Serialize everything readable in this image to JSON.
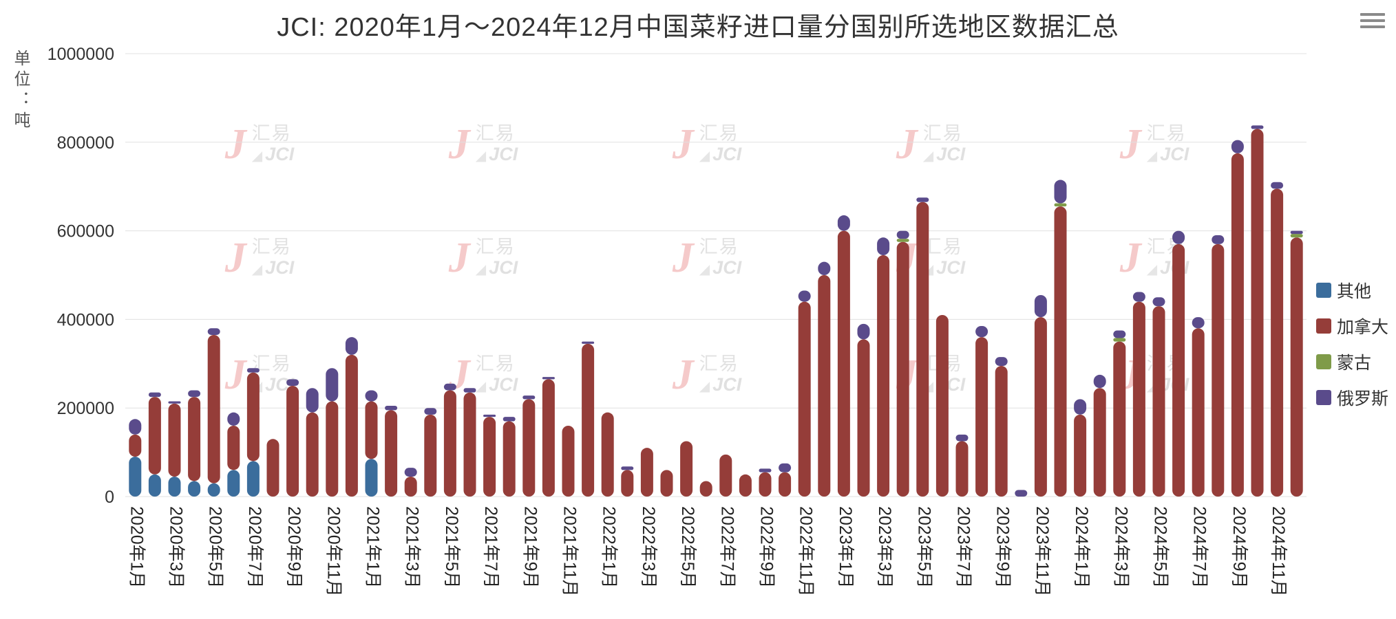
{
  "title": "JCI: 2020年1月～2024年12月中国菜籽进口量分国别所选地区数据汇总",
  "y_axis_label": "单位：吨",
  "menu_icon": "hamburger-menu",
  "watermark": {
    "logo": "J",
    "text_cn": "汇易",
    "text_en": "JCI",
    "accent": "◢"
  },
  "legend": [
    {
      "key": "other",
      "label": "其他",
      "color": "#3b6d9c"
    },
    {
      "key": "canada",
      "label": "加拿大",
      "color": "#953d39"
    },
    {
      "key": "mongolia",
      "label": "蒙古",
      "color": "#7f9b49"
    },
    {
      "key": "russia",
      "label": "俄罗斯",
      "color": "#5a4b8b"
    }
  ],
  "chart_data": {
    "type": "bar",
    "stacked": true,
    "title": "JCI: 2020年1月～2024年12月中国菜籽进口量分国别所选地区数据汇总",
    "ylabel": "单位：吨",
    "xlabel": "",
    "ylim": [
      0,
      1000000
    ],
    "yticks": [
      0,
      200000,
      400000,
      600000,
      800000,
      1000000
    ],
    "grid": true,
    "legend_position": "right",
    "x_label_interval": 2,
    "x_label_rotate": 90,
    "categories": [
      "2020年1月",
      "2020年2月",
      "2020年3月",
      "2020年4月",
      "2020年5月",
      "2020年6月",
      "2020年7月",
      "2020年8月",
      "2020年9月",
      "2020年10月",
      "2020年11月",
      "2020年12月",
      "2021年1月",
      "2021年2月",
      "2021年3月",
      "2021年4月",
      "2021年5月",
      "2021年6月",
      "2021年7月",
      "2021年8月",
      "2021年9月",
      "2021年10月",
      "2021年11月",
      "2021年12月",
      "2022年1月",
      "2022年2月",
      "2022年3月",
      "2022年4月",
      "2022年5月",
      "2022年6月",
      "2022年7月",
      "2022年8月",
      "2022年9月",
      "2022年10月",
      "2022年11月",
      "2022年12月",
      "2023年1月",
      "2023年2月",
      "2023年3月",
      "2023年4月",
      "2023年5月",
      "2023年6月",
      "2023年7月",
      "2023年8月",
      "2023年9月",
      "2023年10月",
      "2023年11月",
      "2023年12月",
      "2024年1月",
      "2024年2月",
      "2024年3月",
      "2024年4月",
      "2024年5月",
      "2024年6月",
      "2024年7月",
      "2024年8月",
      "2024年9月",
      "2024年10月",
      "2024年11月",
      "2024年12月"
    ],
    "series": [
      {
        "key": "other",
        "name": "其他",
        "color": "#3b6d9c",
        "values": [
          90000,
          50000,
          45000,
          35000,
          30000,
          60000,
          80000,
          0,
          0,
          0,
          0,
          0,
          85000,
          0,
          0,
          0,
          0,
          0,
          0,
          0,
          0,
          0,
          0,
          0,
          0,
          0,
          0,
          0,
          0,
          0,
          0,
          0,
          0,
          0,
          0,
          0,
          0,
          0,
          0,
          0,
          0,
          0,
          0,
          0,
          0,
          0,
          0,
          0,
          0,
          0,
          0,
          0,
          0,
          0,
          0,
          0,
          0,
          0,
          0,
          0
        ]
      },
      {
        "key": "canada",
        "name": "加拿大",
        "color": "#953d39",
        "values": [
          50000,
          175000,
          165000,
          190000,
          335000,
          100000,
          200000,
          130000,
          250000,
          190000,
          215000,
          320000,
          130000,
          195000,
          45000,
          185000,
          240000,
          235000,
          180000,
          170000,
          220000,
          265000,
          160000,
          345000,
          190000,
          60000,
          110000,
          60000,
          125000,
          35000,
          95000,
          50000,
          55000,
          55000,
          440000,
          500000,
          600000,
          355000,
          545000,
          575000,
          665000,
          410000,
          125000,
          360000,
          295000,
          0,
          405000,
          655000,
          185000,
          245000,
          350000,
          440000,
          430000,
          570000,
          380000,
          570000,
          775000,
          830000,
          695000,
          585000
        ]
      },
      {
        "key": "mongolia",
        "name": "蒙古",
        "color": "#7f9b49",
        "values": [
          0,
          0,
          0,
          0,
          0,
          0,
          0,
          0,
          0,
          0,
          0,
          0,
          0,
          0,
          0,
          0,
          0,
          0,
          0,
          0,
          0,
          0,
          0,
          0,
          0,
          0,
          0,
          0,
          0,
          0,
          0,
          0,
          0,
          0,
          0,
          0,
          0,
          0,
          0,
          7000,
          0,
          0,
          0,
          0,
          0,
          0,
          0,
          7000,
          0,
          0,
          8000,
          0,
          0,
          0,
          0,
          0,
          0,
          0,
          0,
          8000
        ]
      },
      {
        "key": "russia",
        "name": "俄罗斯",
        "color": "#5a4b8b",
        "values": [
          35000,
          10000,
          5000,
          15000,
          15000,
          30000,
          10000,
          0,
          15000,
          55000,
          75000,
          40000,
          25000,
          10000,
          20000,
          15000,
          15000,
          10000,
          5000,
          10000,
          8000,
          5000,
          0,
          5000,
          0,
          8000,
          0,
          0,
          0,
          0,
          0,
          0,
          8000,
          20000,
          25000,
          30000,
          35000,
          35000,
          40000,
          18000,
          10000,
          0,
          15000,
          25000,
          20000,
          15000,
          50000,
          53000,
          35000,
          30000,
          17000,
          22000,
          20000,
          30000,
          25000,
          20000,
          30000,
          8000,
          15000,
          7000
        ]
      }
    ]
  }
}
